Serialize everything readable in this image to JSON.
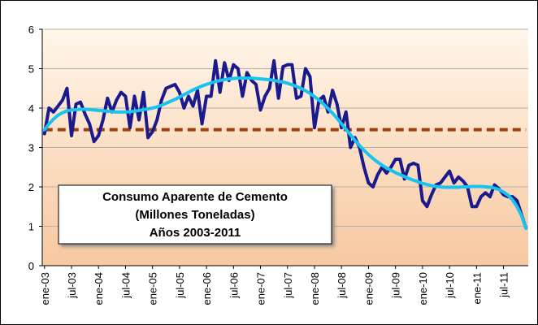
{
  "chart_data": {
    "type": "line",
    "title_lines": [
      "Consumo Aparente de Cemento",
      "(Millones Toneladas)",
      "Años 2003-2011"
    ],
    "categories": [
      "ene-03",
      null,
      null,
      null,
      null,
      null,
      "jul-03",
      null,
      null,
      null,
      null,
      null,
      "ene-04",
      null,
      null,
      null,
      null,
      null,
      "jul-04",
      null,
      null,
      null,
      null,
      null,
      "ene-05",
      null,
      null,
      null,
      null,
      null,
      "jul-05",
      null,
      null,
      null,
      null,
      null,
      "ene-06",
      null,
      null,
      null,
      null,
      null,
      "jul-06",
      null,
      null,
      null,
      null,
      null,
      "ene-07",
      null,
      null,
      null,
      null,
      null,
      "jul-07",
      null,
      null,
      null,
      null,
      null,
      "ene-08",
      null,
      null,
      null,
      null,
      null,
      "jul-08",
      null,
      null,
      null,
      null,
      null,
      "ene-09",
      null,
      null,
      null,
      null,
      null,
      "jul-09",
      null,
      null,
      null,
      null,
      null,
      "ene-10",
      null,
      null,
      null,
      null,
      null,
      "jul-10",
      null,
      null,
      null,
      null,
      null,
      "ene-11",
      null,
      null,
      null,
      null,
      null,
      "jul-11",
      null,
      null,
      null,
      null,
      null
    ],
    "series": [
      {
        "color": "#1a1a8c",
        "width": 4,
        "values": [
          3.35,
          4.0,
          3.9,
          4.05,
          4.2,
          4.5,
          3.3,
          4.1,
          4.15,
          3.85,
          3.6,
          3.15,
          3.3,
          3.7,
          4.25,
          3.9,
          4.2,
          4.4,
          4.3,
          3.5,
          4.3,
          3.7,
          4.4,
          3.25,
          3.4,
          3.7,
          4.2,
          4.5,
          4.55,
          4.6,
          4.4,
          4.0,
          4.3,
          4.05,
          4.45,
          3.6,
          4.3,
          4.3,
          5.2,
          4.4,
          5.15,
          4.7,
          5.1,
          5.0,
          4.3,
          4.9,
          4.7,
          4.6,
          3.95,
          4.3,
          4.5,
          5.2,
          4.25,
          5.05,
          5.1,
          5.1,
          4.25,
          4.3,
          5.0,
          4.8,
          3.5,
          4.2,
          4.3,
          3.9,
          4.45,
          4.1,
          3.5,
          3.9,
          3.0,
          3.25,
          3.0,
          2.5,
          2.1,
          2.0,
          2.3,
          2.5,
          2.35,
          2.5,
          2.7,
          2.7,
          2.2,
          2.55,
          2.6,
          2.55,
          1.65,
          1.5,
          1.8,
          2.05,
          2.1,
          2.25,
          2.4,
          2.1,
          2.25,
          2.15,
          2.0,
          1.5,
          1.5,
          1.75,
          1.85,
          1.75,
          2.05,
          1.95,
          1.8,
          1.75,
          1.75,
          1.65,
          1.3,
          0.95
        ]
      },
      {
        "color": "#19c3ee",
        "width": 4,
        "values": [
          3.45,
          3.6,
          3.72,
          3.82,
          3.88,
          3.93,
          3.95,
          3.96,
          3.97,
          3.97,
          3.96,
          3.95,
          3.94,
          3.93,
          3.92,
          3.91,
          3.9,
          3.9,
          3.9,
          3.91,
          3.92,
          3.94,
          3.96,
          3.98,
          4.0,
          4.03,
          4.07,
          4.12,
          4.17,
          4.22,
          4.28,
          4.34,
          4.4,
          4.46,
          4.51,
          4.56,
          4.6,
          4.64,
          4.67,
          4.7,
          4.72,
          4.74,
          4.75,
          4.76,
          4.76,
          4.76,
          4.76,
          4.75,
          4.74,
          4.73,
          4.72,
          4.7,
          4.68,
          4.66,
          4.63,
          4.59,
          4.55,
          4.5,
          4.44,
          4.37,
          4.29,
          4.2,
          4.1,
          3.99,
          3.87,
          3.74,
          3.6,
          3.46,
          3.32,
          3.18,
          3.05,
          2.93,
          2.82,
          2.72,
          2.63,
          2.55,
          2.48,
          2.42,
          2.36,
          2.31,
          2.26,
          2.21,
          2.17,
          2.13,
          2.09,
          2.06,
          2.03,
          2.01,
          2.0,
          1.99,
          1.99,
          1.99,
          1.99,
          2.0,
          2.0,
          2.01,
          2.01,
          2.01,
          2.0,
          1.99,
          1.97,
          1.93,
          1.87,
          1.79,
          1.67,
          1.5,
          1.27,
          0.95
        ]
      }
    ],
    "reference_line": {
      "value": 3.45,
      "color": "#a0400f",
      "dashed": true
    },
    "ylim": [
      0,
      6
    ],
    "yticks": [
      0,
      1,
      2,
      3,
      4,
      5,
      6
    ],
    "grid": true
  }
}
